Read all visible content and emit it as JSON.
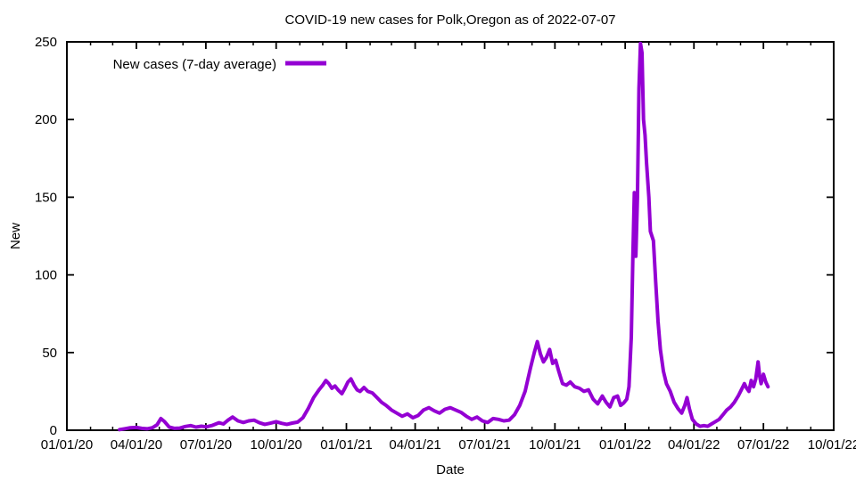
{
  "chart_data": {
    "type": "line",
    "title": "COVID-19 new cases for Polk,Oregon as of 2022-07-07",
    "xlabel": "Date",
    "ylabel": "New",
    "x_range": [
      "2020-01-01",
      "2022-10-01"
    ],
    "ylim": [
      0,
      250
    ],
    "y_ticks": [
      0,
      50,
      100,
      150,
      200,
      250
    ],
    "x_ticks": [
      {
        "date": "2020-01-01",
        "label": "01/01/20"
      },
      {
        "date": "2020-04-01",
        "label": "04/01/20"
      },
      {
        "date": "2020-07-01",
        "label": "07/01/20"
      },
      {
        "date": "2020-10-01",
        "label": "10/01/20"
      },
      {
        "date": "2021-01-01",
        "label": "01/01/21"
      },
      {
        "date": "2021-04-01",
        "label": "04/01/21"
      },
      {
        "date": "2021-07-01",
        "label": "07/01/21"
      },
      {
        "date": "2021-10-01",
        "label": "10/01/21"
      },
      {
        "date": "2022-01-01",
        "label": "01/01/22"
      },
      {
        "date": "2022-04-01",
        "label": "04/01/22"
      },
      {
        "date": "2022-07-01",
        "label": "07/01/22"
      },
      {
        "date": "2022-10-01",
        "label": "10/01/22"
      }
    ],
    "minor_x_tick_interval": "month",
    "grid": false,
    "legend": {
      "label": "New cases (7-day average)",
      "position": "top-left"
    },
    "line_color": "#9400d3",
    "axis_color": "#000000",
    "series": [
      {
        "name": "New cases (7-day average)",
        "points": [
          [
            "2020-03-10",
            0.4
          ],
          [
            "2020-03-17",
            1.0
          ],
          [
            "2020-03-24",
            1.6
          ],
          [
            "2020-04-01",
            1.8
          ],
          [
            "2020-04-08",
            1.2
          ],
          [
            "2020-04-15",
            0.9
          ],
          [
            "2020-04-22",
            1.6
          ],
          [
            "2020-04-28",
            3.5
          ],
          [
            "2020-05-03",
            7.5
          ],
          [
            "2020-05-08",
            5.5
          ],
          [
            "2020-05-14",
            2.0
          ],
          [
            "2020-05-21",
            1.2
          ],
          [
            "2020-05-28",
            1.4
          ],
          [
            "2020-06-04",
            2.4
          ],
          [
            "2020-06-11",
            3.0
          ],
          [
            "2020-06-18",
            2.0
          ],
          [
            "2020-06-25",
            2.6
          ],
          [
            "2020-07-02",
            2.2
          ],
          [
            "2020-07-10",
            3.2
          ],
          [
            "2020-07-18",
            4.8
          ],
          [
            "2020-07-24",
            4.0
          ],
          [
            "2020-07-30",
            6.5
          ],
          [
            "2020-08-05",
            8.5
          ],
          [
            "2020-08-12",
            6.0
          ],
          [
            "2020-08-19",
            5.0
          ],
          [
            "2020-08-26",
            6.0
          ],
          [
            "2020-09-02",
            6.5
          ],
          [
            "2020-09-09",
            4.8
          ],
          [
            "2020-09-16",
            3.8
          ],
          [
            "2020-09-23",
            4.5
          ],
          [
            "2020-10-01",
            5.5
          ],
          [
            "2020-10-08",
            4.5
          ],
          [
            "2020-10-15",
            3.8
          ],
          [
            "2020-10-22",
            4.6
          ],
          [
            "2020-10-29",
            5.2
          ],
          [
            "2020-11-05",
            8.0
          ],
          [
            "2020-11-12",
            14.0
          ],
          [
            "2020-11-19",
            21.0
          ],
          [
            "2020-11-26",
            26.0
          ],
          [
            "2020-12-01",
            29.0
          ],
          [
            "2020-12-05",
            32.0
          ],
          [
            "2020-12-09",
            30.0
          ],
          [
            "2020-12-13",
            27.0
          ],
          [
            "2020-12-17",
            28.5
          ],
          [
            "2020-12-21",
            26.0
          ],
          [
            "2020-12-26",
            23.5
          ],
          [
            "2020-12-30",
            27.0
          ],
          [
            "2021-01-03",
            31.0
          ],
          [
            "2021-01-07",
            33.0
          ],
          [
            "2021-01-11",
            29.0
          ],
          [
            "2021-01-15",
            26.0
          ],
          [
            "2021-01-19",
            25.0
          ],
          [
            "2021-01-24",
            27.5
          ],
          [
            "2021-01-29",
            25.0
          ],
          [
            "2021-02-04",
            24.0
          ],
          [
            "2021-02-10",
            21.0
          ],
          [
            "2021-02-16",
            18.0
          ],
          [
            "2021-02-22",
            16.0
          ],
          [
            "2021-03-01",
            13.0
          ],
          [
            "2021-03-08",
            11.0
          ],
          [
            "2021-03-15",
            9.0
          ],
          [
            "2021-03-22",
            10.5
          ],
          [
            "2021-03-29",
            8.0
          ],
          [
            "2021-04-05",
            9.5
          ],
          [
            "2021-04-12",
            13.0
          ],
          [
            "2021-04-19",
            14.5
          ],
          [
            "2021-04-26",
            12.5
          ],
          [
            "2021-05-03",
            11.0
          ],
          [
            "2021-05-10",
            13.5
          ],
          [
            "2021-05-17",
            14.5
          ],
          [
            "2021-05-24",
            13.0
          ],
          [
            "2021-05-31",
            11.5
          ],
          [
            "2021-06-07",
            9.0
          ],
          [
            "2021-06-14",
            7.0
          ],
          [
            "2021-06-21",
            8.5
          ],
          [
            "2021-06-28",
            6.0
          ],
          [
            "2021-07-05",
            5.0
          ],
          [
            "2021-07-12",
            7.5
          ],
          [
            "2021-07-19",
            7.0
          ],
          [
            "2021-07-26",
            6.0
          ],
          [
            "2021-08-02",
            6.5
          ],
          [
            "2021-08-09",
            10.0
          ],
          [
            "2021-08-16",
            16.0
          ],
          [
            "2021-08-23",
            25.0
          ],
          [
            "2021-08-30",
            40.0
          ],
          [
            "2021-09-04",
            50.0
          ],
          [
            "2021-09-08",
            57.0
          ],
          [
            "2021-09-12",
            49.0
          ],
          [
            "2021-09-16",
            44.0
          ],
          [
            "2021-09-20",
            47.0
          ],
          [
            "2021-09-24",
            52.0
          ],
          [
            "2021-09-28",
            43.0
          ],
          [
            "2021-10-02",
            45.0
          ],
          [
            "2021-10-06",
            38.0
          ],
          [
            "2021-10-11",
            30.0
          ],
          [
            "2021-10-16",
            29.0
          ],
          [
            "2021-10-21",
            31.0
          ],
          [
            "2021-10-27",
            28.0
          ],
          [
            "2021-11-02",
            27.0
          ],
          [
            "2021-11-08",
            25.0
          ],
          [
            "2021-11-14",
            26.0
          ],
          [
            "2021-11-20",
            20.0
          ],
          [
            "2021-11-26",
            17.0
          ],
          [
            "2021-12-02",
            22.0
          ],
          [
            "2021-12-07",
            18.0
          ],
          [
            "2021-12-12",
            15.0
          ],
          [
            "2021-12-17",
            21.0
          ],
          [
            "2021-12-22",
            22.0
          ],
          [
            "2021-12-26",
            16.0
          ],
          [
            "2021-12-30",
            17.5
          ],
          [
            "2022-01-03",
            20.0
          ],
          [
            "2022-01-06",
            28.0
          ],
          [
            "2022-01-09",
            60.0
          ],
          [
            "2022-01-11",
            110.0
          ],
          [
            "2022-01-13",
            153.0
          ],
          [
            "2022-01-14",
            140.0
          ],
          [
            "2022-01-15",
            112.0
          ],
          [
            "2022-01-17",
            150.0
          ],
          [
            "2022-01-19",
            220.0
          ],
          [
            "2022-01-21",
            249.0
          ],
          [
            "2022-01-23",
            243.0
          ],
          [
            "2022-01-25",
            200.0
          ],
          [
            "2022-01-27",
            190.0
          ],
          [
            "2022-01-29",
            172.0
          ],
          [
            "2022-02-01",
            150.0
          ],
          [
            "2022-02-03",
            128.0
          ],
          [
            "2022-02-07",
            122.0
          ],
          [
            "2022-02-10",
            95.0
          ],
          [
            "2022-02-13",
            70.0
          ],
          [
            "2022-02-16",
            52.0
          ],
          [
            "2022-02-20",
            38.0
          ],
          [
            "2022-02-24",
            30.0
          ],
          [
            "2022-03-01",
            25.0
          ],
          [
            "2022-03-06",
            18.0
          ],
          [
            "2022-03-11",
            14.0
          ],
          [
            "2022-03-16",
            11.0
          ],
          [
            "2022-03-20",
            16.0
          ],
          [
            "2022-03-23",
            21.0
          ],
          [
            "2022-03-26",
            14.0
          ],
          [
            "2022-03-30",
            7.0
          ],
          [
            "2022-04-04",
            4.0
          ],
          [
            "2022-04-09",
            2.5
          ],
          [
            "2022-04-14",
            3.0
          ],
          [
            "2022-04-19",
            2.5
          ],
          [
            "2022-04-24",
            4.0
          ],
          [
            "2022-04-29",
            5.5
          ],
          [
            "2022-05-04",
            7.0
          ],
          [
            "2022-05-09",
            10.0
          ],
          [
            "2022-05-14",
            13.0
          ],
          [
            "2022-05-19",
            15.0
          ],
          [
            "2022-05-24",
            18.0
          ],
          [
            "2022-05-29",
            22.0
          ],
          [
            "2022-06-02",
            26.0
          ],
          [
            "2022-06-06",
            30.0
          ],
          [
            "2022-06-09",
            27.0
          ],
          [
            "2022-06-12",
            25.0
          ],
          [
            "2022-06-15",
            32.0
          ],
          [
            "2022-06-18",
            28.0
          ],
          [
            "2022-06-21",
            33.0
          ],
          [
            "2022-06-24",
            44.0
          ],
          [
            "2022-06-26",
            35.0
          ],
          [
            "2022-06-28",
            30.0
          ],
          [
            "2022-07-01",
            36.0
          ],
          [
            "2022-07-04",
            31.0
          ],
          [
            "2022-07-07",
            28.0
          ]
        ]
      }
    ]
  }
}
